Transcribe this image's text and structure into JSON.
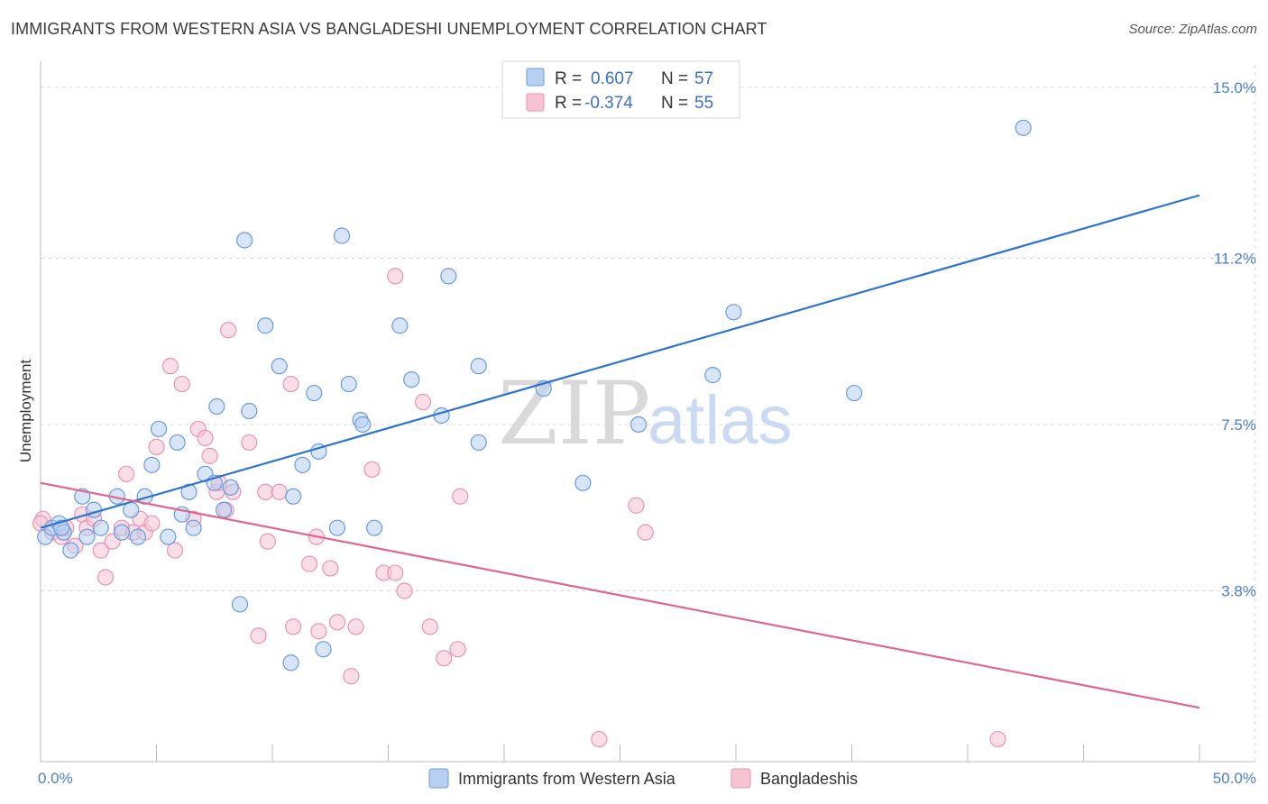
{
  "title": "IMMIGRANTS FROM WESTERN ASIA VS BANGLADESHI UNEMPLOYMENT CORRELATION CHART",
  "source": "Source: ZipAtlas.com",
  "watermark": {
    "zip": "ZIP",
    "atlas": "atlas"
  },
  "colors": {
    "blue_fill": "#b7cff0",
    "blue_stroke": "#6a9be0",
    "blue_line": "#2f73d0",
    "pink_fill": "#f6c3d3",
    "pink_stroke": "#e994b2",
    "pink_line": "#e0668f",
    "grid": "#d8d8d8",
    "tick_label": "#4a7fd0"
  },
  "legend": {
    "rows": [
      {
        "r_label": "R =",
        "r_value": "0.607",
        "n_label": "N =",
        "n_value": "57",
        "color": "blue"
      },
      {
        "r_label": "R =",
        "r_value": "-0.374",
        "n_label": "N =",
        "n_value": "55",
        "color": "pink"
      }
    ]
  },
  "bottom_legend": [
    {
      "label": "Immigrants from Western Asia",
      "color": "blue"
    },
    {
      "label": "Bangladeshis",
      "color": "pink"
    }
  ],
  "chart_data": {
    "type": "scatter",
    "ylabel": "Unemployment",
    "xlim": [
      0,
      50
    ],
    "ylim": [
      0,
      15.5
    ],
    "x_tick_labels": [
      {
        "value": 0,
        "label": "0.0%"
      },
      {
        "value": 50,
        "label": "50.0%"
      }
    ],
    "y_ticks": [
      {
        "value": 3.8,
        "label": "3.8%"
      },
      {
        "value": 7.5,
        "label": "7.5%"
      },
      {
        "value": 11.2,
        "label": "11.2%"
      },
      {
        "value": 15.0,
        "label": "15.0%"
      }
    ],
    "x_minor_ticks": [
      5,
      10,
      15,
      20,
      25,
      30,
      35,
      40,
      45,
      50
    ],
    "grid": true,
    "series": [
      {
        "name": "Immigrants from Western Asia",
        "color": "blue",
        "trend": {
          "x": [
            0,
            50
          ],
          "y": [
            5.2,
            12.6
          ]
        },
        "points": [
          [
            0.2,
            5.0
          ],
          [
            0.5,
            5.2
          ],
          [
            0.8,
            5.3
          ],
          [
            1.0,
            5.1
          ],
          [
            1.3,
            4.7
          ],
          [
            1.8,
            5.9
          ],
          [
            2.0,
            5.0
          ],
          [
            2.3,
            5.6
          ],
          [
            2.6,
            5.2
          ],
          [
            3.3,
            5.9
          ],
          [
            3.5,
            5.1
          ],
          [
            3.9,
            5.6
          ],
          [
            4.2,
            5.0
          ],
          [
            4.5,
            5.9
          ],
          [
            4.8,
            6.6
          ],
          [
            5.1,
            7.4
          ],
          [
            5.5,
            5.0
          ],
          [
            5.9,
            7.1
          ],
          [
            6.1,
            5.5
          ],
          [
            6.4,
            6.0
          ],
          [
            6.6,
            5.2
          ],
          [
            7.1,
            6.4
          ],
          [
            7.5,
            6.2
          ],
          [
            7.6,
            7.9
          ],
          [
            7.9,
            5.6
          ],
          [
            8.2,
            6.1
          ],
          [
            8.6,
            3.5
          ],
          [
            8.8,
            11.6
          ],
          [
            9.0,
            7.8
          ],
          [
            9.7,
            9.7
          ],
          [
            10.3,
            8.8
          ],
          [
            10.8,
            2.2
          ],
          [
            10.9,
            5.9
          ],
          [
            11.3,
            6.6
          ],
          [
            11.8,
            8.2
          ],
          [
            12.2,
            2.5
          ],
          [
            12.0,
            6.9
          ],
          [
            12.8,
            5.2
          ],
          [
            13.0,
            11.7
          ],
          [
            13.3,
            8.4
          ],
          [
            13.8,
            7.6
          ],
          [
            13.9,
            7.5
          ],
          [
            14.4,
            5.2
          ],
          [
            15.5,
            9.7
          ],
          [
            16.0,
            8.5
          ],
          [
            17.3,
            7.7
          ],
          [
            17.6,
            10.8
          ],
          [
            18.9,
            8.8
          ],
          [
            18.9,
            7.1
          ],
          [
            21.7,
            8.3
          ],
          [
            23.4,
            6.2
          ],
          [
            25.8,
            7.5
          ],
          [
            29.0,
            8.6
          ],
          [
            29.9,
            10.0
          ],
          [
            35.1,
            8.2
          ],
          [
            42.4,
            14.1
          ],
          [
            0.9,
            5.2
          ]
        ]
      },
      {
        "name": "Bangladeshis",
        "color": "pink",
        "trend": {
          "x": [
            0,
            50
          ],
          "y": [
            6.2,
            1.2
          ]
        },
        "points": [
          [
            0.1,
            5.4
          ],
          [
            0.5,
            5.1
          ],
          [
            0.9,
            5.0
          ],
          [
            1.1,
            5.2
          ],
          [
            1.5,
            4.8
          ],
          [
            1.8,
            5.5
          ],
          [
            2.0,
            5.2
          ],
          [
            2.3,
            5.4
          ],
          [
            2.6,
            4.7
          ],
          [
            2.8,
            4.1
          ],
          [
            3.1,
            4.9
          ],
          [
            3.5,
            5.2
          ],
          [
            3.7,
            6.4
          ],
          [
            4.0,
            5.1
          ],
          [
            4.3,
            5.4
          ],
          [
            4.5,
            5.1
          ],
          [
            4.8,
            5.3
          ],
          [
            5.0,
            7.0
          ],
          [
            5.6,
            8.8
          ],
          [
            5.8,
            4.7
          ],
          [
            6.1,
            8.4
          ],
          [
            6.6,
            5.4
          ],
          [
            6.8,
            7.4
          ],
          [
            7.1,
            7.2
          ],
          [
            7.3,
            6.8
          ],
          [
            7.6,
            6.0
          ],
          [
            7.7,
            6.2
          ],
          [
            8.0,
            5.6
          ],
          [
            8.1,
            9.6
          ],
          [
            8.3,
            6.0
          ],
          [
            9.0,
            7.1
          ],
          [
            9.4,
            2.8
          ],
          [
            9.7,
            6.0
          ],
          [
            9.8,
            4.9
          ],
          [
            10.3,
            6.0
          ],
          [
            10.8,
            8.4
          ],
          [
            10.9,
            3.0
          ],
          [
            11.6,
            4.4
          ],
          [
            11.9,
            5.0
          ],
          [
            12.0,
            2.9
          ],
          [
            12.5,
            4.3
          ],
          [
            12.8,
            3.1
          ],
          [
            13.4,
            1.9
          ],
          [
            13.6,
            3.0
          ],
          [
            14.3,
            6.5
          ],
          [
            14.8,
            4.2
          ],
          [
            15.3,
            4.2
          ],
          [
            15.3,
            10.8
          ],
          [
            15.7,
            3.8
          ],
          [
            16.5,
            8.0
          ],
          [
            16.8,
            3.0
          ],
          [
            17.4,
            2.3
          ],
          [
            18.0,
            2.5
          ],
          [
            18.1,
            5.9
          ],
          [
            25.7,
            5.7
          ]
        ],
        "extra_points": [
          [
            24.1,
            0.5
          ],
          [
            41.3,
            0.5
          ],
          [
            26.1,
            5.1
          ],
          [
            0.0,
            5.3
          ]
        ]
      }
    ]
  }
}
